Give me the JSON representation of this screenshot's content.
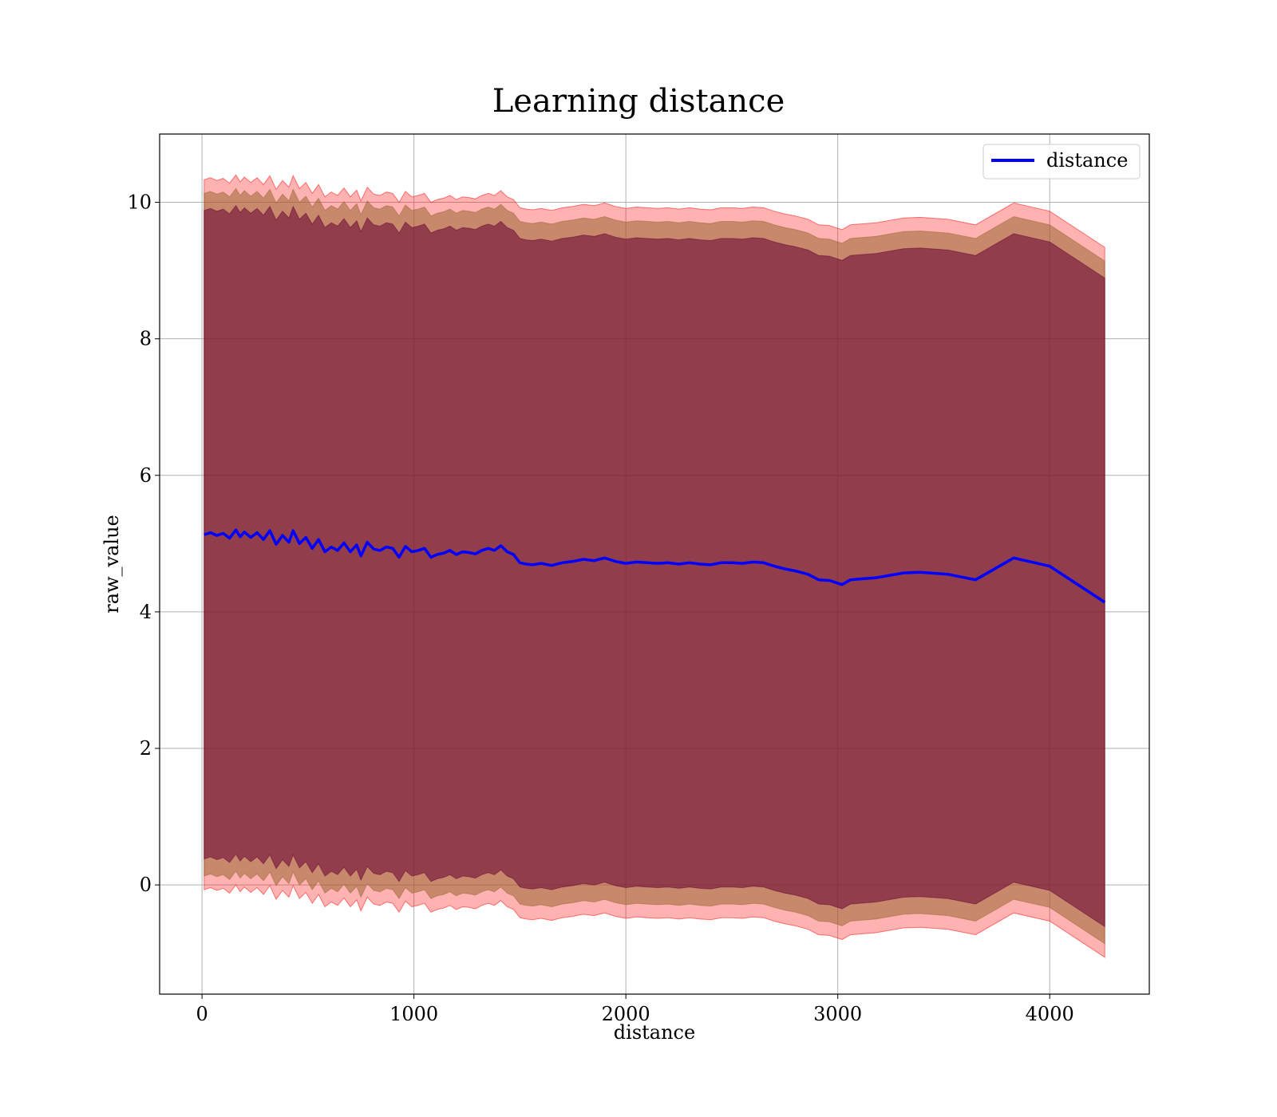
{
  "chart_data": {
    "type": "line",
    "title": "Learning distance",
    "xlabel": "distance",
    "ylabel": "raw_value",
    "xlim": [
      -200,
      4470
    ],
    "ylim": [
      -1.6,
      11.0
    ],
    "xticks": [
      0,
      1000,
      2000,
      3000,
      4000
    ],
    "yticks": [
      0,
      2,
      4,
      6,
      8,
      10
    ],
    "grid": true,
    "legend": {
      "position": "top-right",
      "entries": [
        "distance"
      ]
    },
    "colors": {
      "line": "#0000ff",
      "band_outer": "#ff0000",
      "band_middle": "#996633",
      "band_inner": "#660033"
    },
    "band_offsets": {
      "outer": 5.2,
      "middle": 5.0,
      "inner": 4.75
    },
    "series": [
      {
        "name": "distance",
        "x": [
          10,
          40,
          70,
          100,
          130,
          160,
          180,
          200,
          230,
          260,
          290,
          320,
          350,
          380,
          410,
          430,
          460,
          490,
          520,
          550,
          580,
          610,
          640,
          670,
          700,
          730,
          750,
          780,
          810,
          840,
          870,
          900,
          930,
          960,
          990,
          1020,
          1050,
          1080,
          1110,
          1140,
          1170,
          1200,
          1230,
          1260,
          1290,
          1320,
          1350,
          1380,
          1410,
          1440,
          1470,
          1500,
          1530,
          1560,
          1600,
          1650,
          1700,
          1750,
          1800,
          1850,
          1900,
          1950,
          2000,
          2050,
          2100,
          2150,
          2200,
          2250,
          2300,
          2350,
          2400,
          2450,
          2500,
          2550,
          2600,
          2650,
          2700,
          2750,
          2800,
          2860,
          2910,
          2960,
          3020,
          3060,
          3100,
          3180,
          3310,
          3390,
          3520,
          3650,
          3830,
          4000,
          4260
        ],
        "y": [
          5.13,
          5.16,
          5.12,
          5.15,
          5.08,
          5.2,
          5.1,
          5.17,
          5.09,
          5.16,
          5.06,
          5.19,
          4.99,
          5.12,
          5.02,
          5.19,
          5.0,
          5.09,
          4.93,
          5.06,
          4.88,
          4.95,
          4.9,
          5.01,
          4.88,
          4.98,
          4.82,
          5.02,
          4.92,
          4.9,
          4.95,
          4.93,
          4.8,
          4.96,
          4.88,
          4.9,
          4.93,
          4.8,
          4.84,
          4.86,
          4.9,
          4.84,
          4.88,
          4.87,
          4.85,
          4.9,
          4.93,
          4.9,
          4.97,
          4.88,
          4.84,
          4.72,
          4.7,
          4.69,
          4.71,
          4.68,
          4.72,
          4.74,
          4.77,
          4.75,
          4.79,
          4.74,
          4.71,
          4.73,
          4.72,
          4.71,
          4.72,
          4.7,
          4.72,
          4.7,
          4.69,
          4.72,
          4.72,
          4.71,
          4.73,
          4.72,
          4.67,
          4.63,
          4.6,
          4.55,
          4.47,
          4.46,
          4.4,
          4.47,
          4.48,
          4.5,
          4.57,
          4.58,
          4.55,
          4.47,
          4.79,
          4.67,
          4.14
        ]
      }
    ]
  }
}
